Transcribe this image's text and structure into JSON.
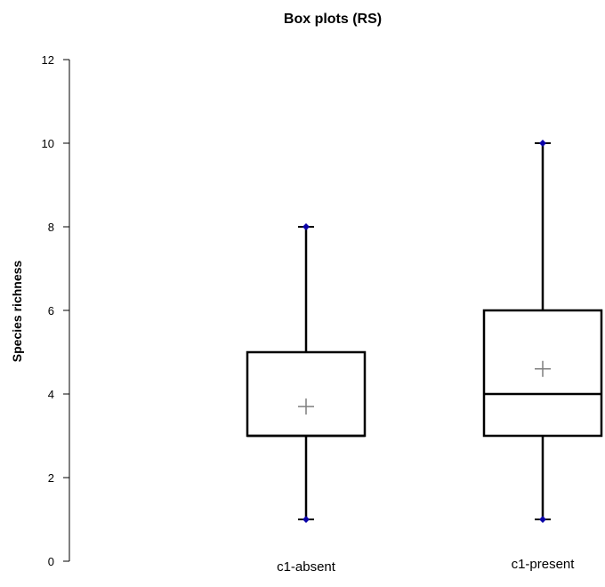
{
  "chart_data": {
    "type": "box",
    "title": "Box plots (RS)",
    "xlabel": "",
    "ylabel": "Species richness",
    "ylim": [
      0,
      12
    ],
    "yticks": [
      0,
      2,
      4,
      6,
      8,
      10,
      12
    ],
    "grid": false,
    "legend": "none",
    "categories": [
      "c1-absent",
      "c1-present"
    ],
    "boxes": [
      {
        "category": "c1-absent",
        "min": 1,
        "q1": 3,
        "median": 3,
        "q3": 5,
        "max": 8,
        "mean": 3.7
      },
      {
        "category": "c1-present",
        "min": 1,
        "q1": 3,
        "median": 4,
        "q3": 6,
        "max": 10,
        "mean": 4.6
      }
    ],
    "colors": {
      "box": "#000000",
      "whisker_point": "#0a00a8",
      "mean_marker": "#7f7f7f"
    }
  }
}
